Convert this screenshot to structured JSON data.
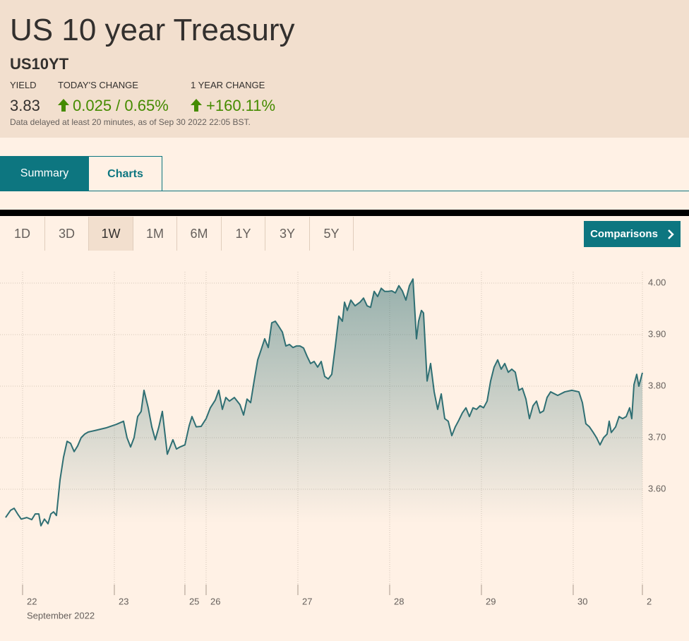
{
  "header": {
    "title": "US 10 year Treasury",
    "symbol": "US10YT",
    "stats": [
      {
        "label": "YIELD",
        "value": "3.83"
      },
      {
        "label": "TODAY'S CHANGE",
        "value": "0.025 / 0.65%"
      },
      {
        "label": "1 YEAR CHANGE",
        "value": "+160.11%"
      }
    ],
    "note": "Data delayed at least 20 minutes, as of Sep 30 2022 22:05 BST."
  },
  "tabs": [
    "Summary",
    "Charts"
  ],
  "ranges": [
    "1D",
    "3D",
    "1W",
    "1M",
    "6M",
    "1Y",
    "3Y",
    "5Y"
  ],
  "comparisons_button": "Comparisons",
  "chart_data": {
    "type": "line",
    "x_axis_label": "September 2022",
    "xlim": [
      -0.246,
      6.754
    ],
    "xticks": [
      {
        "value": 0,
        "label": "22"
      },
      {
        "value": 1,
        "label": "23"
      },
      {
        "value": 1.769,
        "label": "25"
      },
      {
        "value": 2,
        "label": "26"
      },
      {
        "value": 3,
        "label": "27"
      },
      {
        "value": 4,
        "label": "28"
      },
      {
        "value": 5,
        "label": "29"
      },
      {
        "value": 6,
        "label": "30"
      },
      {
        "value": 6.754,
        "label": "2"
      }
    ],
    "ylim": [
      3.415,
      4.022
    ],
    "yticks": [
      {
        "value": 3.6,
        "label": "3.60"
      },
      {
        "value": 3.7,
        "label": "3.70"
      },
      {
        "value": 3.8,
        "label": "3.80"
      },
      {
        "value": 3.9,
        "label": "3.90"
      },
      {
        "value": 4.0,
        "label": "4.00"
      }
    ],
    "grid": true,
    "x": [
      -0.185,
      -0.131,
      -0.092,
      -0.054,
      -0.015,
      0.046,
      0.1,
      0.138,
      0.177,
      0.2,
      0.238,
      0.277,
      0.308,
      0.338,
      0.369,
      0.408,
      0.446,
      0.485,
      0.523,
      0.562,
      0.6,
      0.638,
      0.677,
      0.715,
      0.792,
      0.908,
      1.023,
      1.1,
      1.138,
      1.177,
      1.215,
      1.254,
      1.292,
      1.323,
      1.369,
      1.408,
      1.446,
      1.485,
      1.523,
      1.577,
      1.638,
      1.677,
      1.715,
      1.769,
      1.815,
      1.846,
      1.892,
      1.946,
      2,
      2.046,
      2.1,
      2.138,
      2.177,
      2.215,
      2.254,
      2.308,
      2.369,
      2.408,
      2.446,
      2.485,
      2.523,
      2.562,
      2.6,
      2.638,
      2.677,
      2.715,
      2.754,
      2.792,
      2.831,
      2.869,
      2.908,
      2.946,
      2.985,
      3.023,
      3.062,
      3.1,
      3.138,
      3.177,
      3.215,
      3.254,
      3.292,
      3.331,
      3.369,
      3.408,
      3.446,
      3.485,
      3.508,
      3.538,
      3.577,
      3.623,
      3.677,
      3.715,
      3.754,
      3.792,
      3.831,
      3.869,
      3.908,
      3.946,
      3.985,
      4.023,
      4.062,
      4.1,
      4.138,
      4.177,
      4.215,
      4.254,
      4.292,
      4.315,
      4.346,
      4.369,
      4.408,
      4.446,
      4.485,
      4.523,
      4.562,
      4.6,
      4.638,
      4.677,
      4.715,
      4.754,
      4.792,
      4.831,
      4.869,
      4.908,
      4.946,
      4.985,
      5.023,
      5.062,
      5.1,
      5.138,
      5.177,
      5.215,
      5.254,
      5.292,
      5.331,
      5.369,
      5.408,
      5.446,
      5.485,
      5.523,
      5.562,
      5.6,
      5.638,
      5.677,
      5.715,
      5.754,
      5.831,
      5.908,
      5.985,
      6.062,
      6.1,
      6.138,
      6.177,
      6.215,
      6.254,
      6.292,
      6.331,
      6.369,
      6.392,
      6.415,
      6.462,
      6.5,
      6.538,
      6.577,
      6.615,
      6.638,
      6.662,
      6.692,
      6.715,
      6.754
    ],
    "series": [
      {
        "name": "US10YT",
        "color": "#2f6f73",
        "values": [
          3.545,
          3.559,
          3.563,
          3.552,
          3.542,
          3.545,
          3.541,
          3.552,
          3.552,
          3.529,
          3.542,
          3.533,
          3.552,
          3.556,
          3.549,
          3.618,
          3.662,
          3.693,
          3.689,
          3.673,
          3.684,
          3.7,
          3.707,
          3.711,
          3.714,
          3.719,
          3.726,
          3.732,
          3.7,
          3.682,
          3.7,
          3.741,
          3.751,
          3.792,
          3.758,
          3.721,
          3.696,
          3.721,
          3.751,
          3.668,
          3.696,
          3.678,
          3.682,
          3.686,
          3.723,
          3.741,
          3.721,
          3.722,
          3.737,
          3.758,
          3.773,
          3.792,
          3.755,
          3.778,
          3.771,
          3.778,
          3.764,
          3.744,
          3.775,
          3.768,
          3.81,
          3.851,
          3.871,
          3.892,
          3.875,
          3.923,
          3.926,
          3.916,
          3.905,
          3.878,
          3.881,
          3.875,
          3.878,
          3.878,
          3.874,
          3.858,
          3.844,
          3.848,
          3.837,
          3.848,
          3.819,
          3.814,
          3.823,
          3.878,
          3.936,
          3.926,
          3.963,
          3.947,
          3.967,
          3.956,
          3.963,
          3.971,
          3.956,
          3.953,
          3.984,
          3.974,
          3.99,
          3.984,
          3.984,
          3.985,
          3.981,
          3.995,
          3.985,
          3.967,
          3.995,
          4.008,
          3.892,
          3.926,
          3.947,
          3.942,
          3.81,
          3.844,
          3.789,
          3.755,
          3.785,
          3.737,
          3.732,
          3.704,
          3.721,
          3.734,
          3.748,
          3.758,
          3.741,
          3.758,
          3.755,
          3.762,
          3.758,
          3.771,
          3.81,
          3.837,
          3.851,
          3.833,
          3.844,
          3.827,
          3.833,
          3.827,
          3.792,
          3.796,
          3.775,
          3.737,
          3.762,
          3.771,
          3.748,
          3.752,
          3.778,
          3.789,
          3.782,
          3.789,
          3.792,
          3.789,
          3.768,
          3.727,
          3.721,
          3.711,
          3.7,
          3.686,
          3.7,
          3.707,
          3.732,
          3.71,
          3.721,
          3.741,
          3.737,
          3.741,
          3.758,
          3.737,
          3.803,
          3.823,
          3.8,
          3.826
        ]
      }
    ]
  }
}
